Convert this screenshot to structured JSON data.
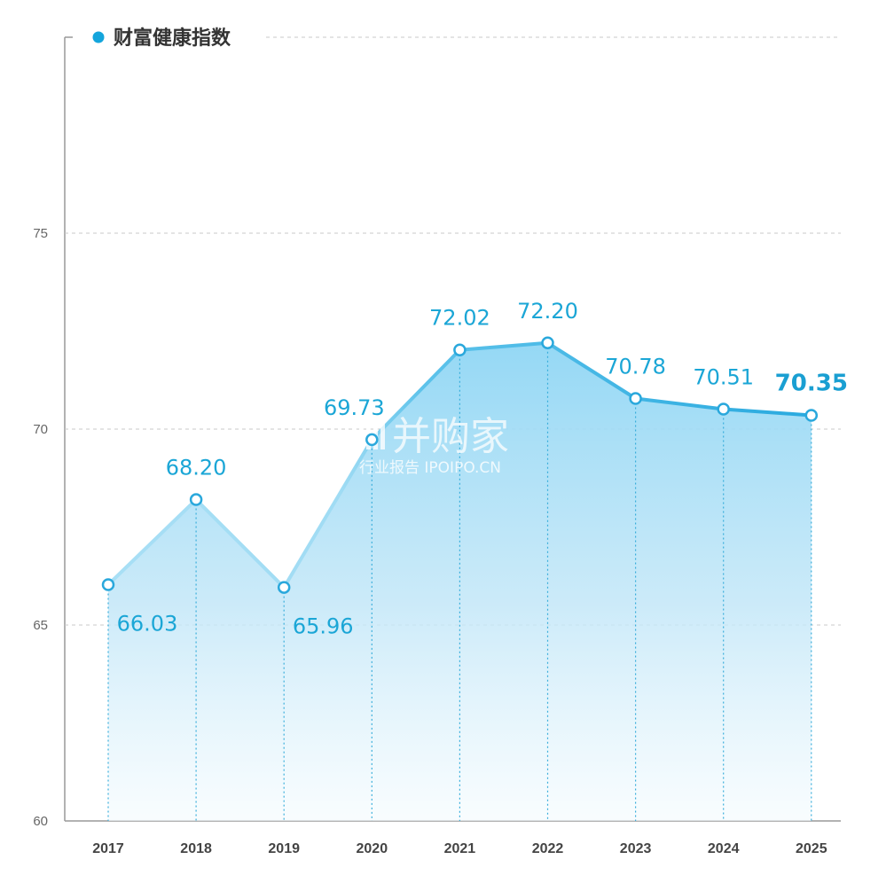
{
  "chart_data": {
    "type": "area",
    "title": "财富健康指数",
    "categories": [
      "2017",
      "2018",
      "2019",
      "2020",
      "2021",
      "2022",
      "2023",
      "2024",
      "2025"
    ],
    "values": [
      66.03,
      68.2,
      65.96,
      69.73,
      72.02,
      72.2,
      70.78,
      70.51,
      70.35
    ],
    "value_labels": [
      "66.03",
      "68.20",
      "65.96",
      "69.73",
      "72.02",
      "72.20",
      "70.78",
      "70.51",
      "70.35"
    ],
    "yticks": [
      "60",
      "65",
      "70",
      "75"
    ],
    "ylim": [
      60,
      80
    ],
    "grid": true,
    "legend": "top-left",
    "xlabel": "",
    "ylabel": "",
    "colors": {
      "line": "#3ab4e4",
      "line_light": "#a8dff5",
      "marker": "#2aa8dc",
      "label": "#1ba6d6",
      "bullet": "#14a5dc"
    }
  },
  "watermark": {
    "text": "并购家",
    "subtext": "行业报告 IPOIPO.CN"
  }
}
